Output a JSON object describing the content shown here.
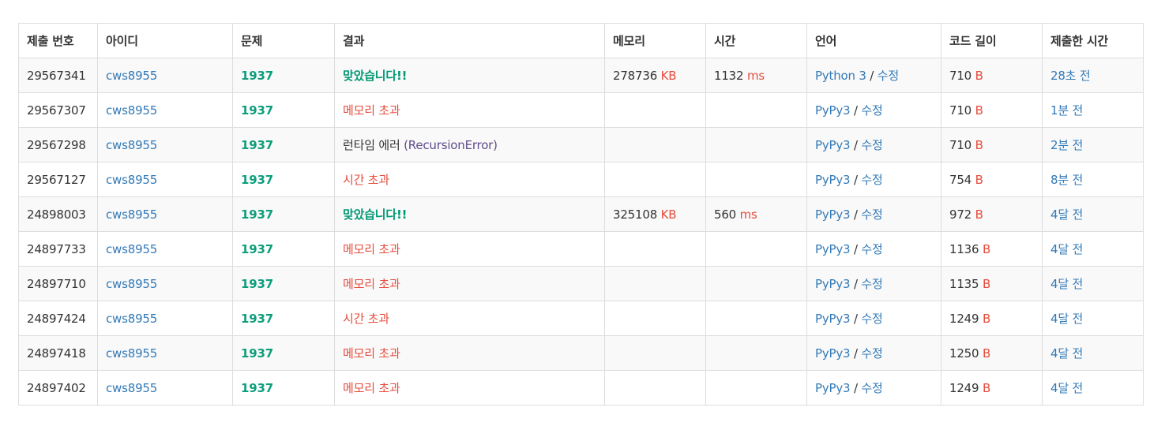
{
  "columns": [
    "제출 번호",
    "아이디",
    "문제",
    "결과",
    "메모리",
    "시간",
    "언어",
    "코드 길이",
    "제출한 시간"
  ],
  "units": {
    "memory": "KB",
    "time": "ms",
    "code_length": "B"
  },
  "edit_label": "수정",
  "colors": {
    "link": "#337ab7",
    "accepted": "#009874",
    "problem": "#0e9e7c",
    "error": "#e74c3c",
    "runtime_error_detail": "#5f4b8b"
  },
  "rows": [
    {
      "id": "29567341",
      "user": "cws8955",
      "problem": "1937",
      "result": "맞았습니다!!",
      "memory": "278736",
      "time": "1132",
      "language": "Python 3",
      "code_length": "710",
      "submitted": "28초 전"
    },
    {
      "id": "29567307",
      "user": "cws8955",
      "problem": "1937",
      "result": "메모리 초과",
      "memory": "",
      "time": "",
      "language": "PyPy3",
      "code_length": "710",
      "submitted": "1분 전"
    },
    {
      "id": "29567298",
      "user": "cws8955",
      "problem": "1937",
      "result": "런타임 에러",
      "result_detail": "(RecursionError)",
      "memory": "",
      "time": "",
      "language": "PyPy3",
      "code_length": "710",
      "submitted": "2분 전"
    },
    {
      "id": "29567127",
      "user": "cws8955",
      "problem": "1937",
      "result": "시간 초과",
      "memory": "",
      "time": "",
      "language": "PyPy3",
      "code_length": "754",
      "submitted": "8분 전"
    },
    {
      "id": "24898003",
      "user": "cws8955",
      "problem": "1937",
      "result": "맞았습니다!!",
      "memory": "325108",
      "time": "560",
      "language": "PyPy3",
      "code_length": "972",
      "submitted": "4달 전"
    },
    {
      "id": "24897733",
      "user": "cws8955",
      "problem": "1937",
      "result": "메모리 초과",
      "memory": "",
      "time": "",
      "language": "PyPy3",
      "code_length": "1136",
      "submitted": "4달 전"
    },
    {
      "id": "24897710",
      "user": "cws8955",
      "problem": "1937",
      "result": "메모리 초과",
      "memory": "",
      "time": "",
      "language": "PyPy3",
      "code_length": "1135",
      "submitted": "4달 전"
    },
    {
      "id": "24897424",
      "user": "cws8955",
      "problem": "1937",
      "result": "시간 초과",
      "memory": "",
      "time": "",
      "language": "PyPy3",
      "code_length": "1249",
      "submitted": "4달 전"
    },
    {
      "id": "24897418",
      "user": "cws8955",
      "problem": "1937",
      "result": "메모리 초과",
      "memory": "",
      "time": "",
      "language": "PyPy3",
      "code_length": "1250",
      "submitted": "4달 전"
    },
    {
      "id": "24897402",
      "user": "cws8955",
      "problem": "1937",
      "result": "메모리 초과",
      "memory": "",
      "time": "",
      "language": "PyPy3",
      "code_length": "1249",
      "submitted": "4달 전"
    }
  ]
}
